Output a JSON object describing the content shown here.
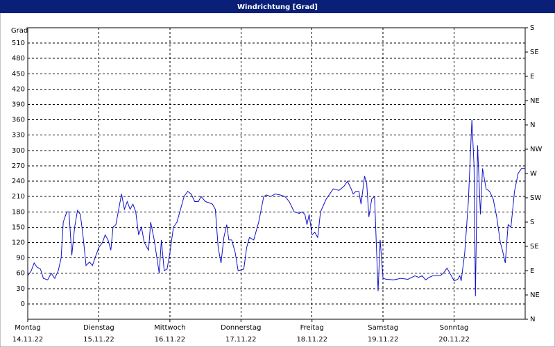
{
  "chart_data": {
    "type": "line",
    "title": "Windrichtung [Grad]",
    "ylabel": "Grad",
    "xlim": [
      0,
      7
    ],
    "xticks": [
      {
        "value": 0,
        "label": "Montag"
      },
      {
        "value": 1,
        "label": "Dienstag"
      },
      {
        "value": 2,
        "label": "Mittwoch"
      },
      {
        "value": 3,
        "label": "Donnerstag"
      },
      {
        "value": 4,
        "label": "Freitag"
      },
      {
        "value": 5,
        "label": "Samstag"
      },
      {
        "value": 6,
        "label": "Sonntag"
      }
    ],
    "xtick_dates": [
      "14.11.22",
      "15.11.22",
      "16.11.22",
      "17.11.22",
      "18.11.22",
      "19.11.22",
      "20.11.22"
    ],
    "ylim": [
      -30,
      540
    ],
    "yticks": [
      0,
      30,
      60,
      90,
      120,
      150,
      180,
      210,
      240,
      270,
      300,
      330,
      360,
      390,
      420,
      450,
      480,
      510
    ],
    "y2lim": [
      0,
      12
    ],
    "y2ticks": [
      {
        "value": 0,
        "label": "N"
      },
      {
        "value": 1,
        "label": "NE"
      },
      {
        "value": 2,
        "label": "E"
      },
      {
        "value": 3,
        "label": "SE"
      },
      {
        "value": 4,
        "label": "S"
      },
      {
        "value": 5,
        "label": "SW"
      },
      {
        "value": 6,
        "label": "W"
      },
      {
        "value": 7,
        "label": "NW"
      },
      {
        "value": 8,
        "label": "N"
      },
      {
        "value": 9,
        "label": "NE"
      },
      {
        "value": 10,
        "label": "E"
      },
      {
        "value": 11,
        "label": "SE"
      },
      {
        "value": 12,
        "label": "S"
      }
    ],
    "grid": true,
    "series": [
      {
        "color": "#1010c8",
        "x": [
          0,
          0.05,
          0.09,
          0.13,
          0.18,
          0.22,
          0.28,
          0.33,
          0.38,
          0.43,
          0.47,
          0.5,
          0.55,
          0.58,
          0.62,
          0.66,
          0.7,
          0.74,
          0.78,
          0.82,
          0.87,
          0.91,
          0.96,
          1.0,
          1.05,
          1.09,
          1.13,
          1.17,
          1.2,
          1.24,
          1.28,
          1.32,
          1.36,
          1.4,
          1.44,
          1.48,
          1.52,
          1.56,
          1.6,
          1.64,
          1.7,
          1.73,
          1.78,
          1.85,
          1.88,
          1.92,
          1.96,
          2.0,
          2.05,
          2.1,
          2.15,
          2.2,
          2.25,
          2.3,
          2.35,
          2.4,
          2.44,
          2.5,
          2.55,
          2.6,
          2.64,
          2.68,
          2.72,
          2.76,
          2.8,
          2.83,
          2.87,
          2.92,
          2.96,
          3.04,
          3.08,
          3.12,
          3.18,
          3.25,
          3.32,
          3.36,
          3.42,
          3.48,
          3.55,
          3.62,
          3.68,
          3.75,
          3.82,
          3.86,
          3.9,
          3.93,
          3.96,
          4.0,
          4.04,
          4.08,
          4.12,
          4.2,
          4.3,
          4.38,
          4.45,
          4.5,
          4.55,
          4.58,
          4.62,
          4.66,
          4.69,
          4.74,
          4.77,
          4.8,
          4.84,
          4.88,
          4.91,
          4.93,
          4.96,
          5.0,
          5.05,
          5.15,
          5.25,
          5.35,
          5.45,
          5.5,
          5.55,
          5.6,
          5.65,
          5.7,
          5.8,
          5.85,
          5.9,
          5.95,
          6.0,
          6.05,
          6.08,
          6.1,
          6.15,
          6.2,
          6.25,
          6.28,
          6.3,
          6.33,
          6.37,
          6.4,
          6.45,
          6.5,
          6.55,
          6.6,
          6.65,
          6.68,
          6.72,
          6.76,
          6.8,
          6.85,
          6.9,
          6.95,
          7.0
        ],
        "values": [
          55,
          65,
          80,
          72,
          68,
          50,
          47,
          60,
          50,
          65,
          90,
          160,
          180,
          180,
          95,
          150,
          183,
          175,
          130,
          75,
          82,
          75,
          95,
          110,
          120,
          135,
          125,
          105,
          150,
          155,
          185,
          215,
          185,
          200,
          185,
          195,
          180,
          135,
          150,
          120,
          105,
          160,
          125,
          60,
          125,
          65,
          68,
          100,
          150,
          160,
          185,
          210,
          220,
          215,
          200,
          200,
          210,
          200,
          198,
          195,
          185,
          110,
          80,
          130,
          155,
          125,
          125,
          100,
          65,
          68,
          110,
          130,
          125,
          160,
          210,
          213,
          210,
          215,
          213,
          210,
          200,
          180,
          177,
          180,
          175,
          155,
          175,
          135,
          140,
          130,
          180,
          205,
          225,
          222,
          230,
          240,
          225,
          215,
          220,
          220,
          195,
          250,
          235,
          170,
          205,
          210,
          100,
          25,
          125,
          50,
          48,
          47,
          50,
          48,
          55,
          52,
          55,
          47,
          52,
          55,
          55,
          60,
          70,
          58,
          45,
          48,
          55,
          45,
          100,
          200,
          360,
          270,
          15,
          310,
          175,
          265,
          225,
          220,
          205,
          170,
          120,
          105,
          80,
          155,
          150,
          220,
          255,
          265,
          265
        ]
      }
    ]
  }
}
